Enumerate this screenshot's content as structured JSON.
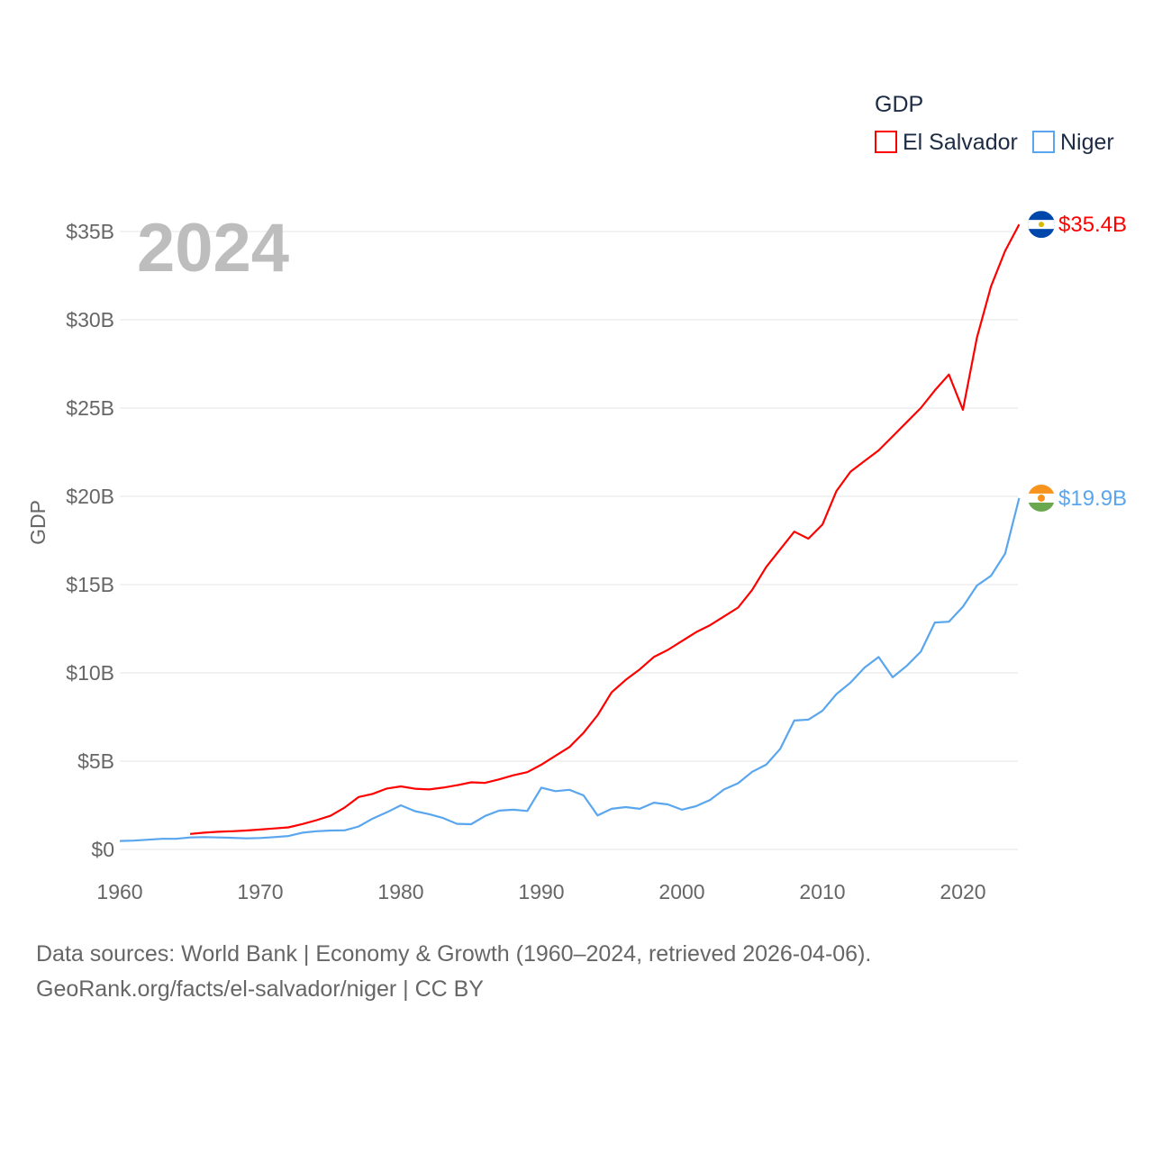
{
  "chart_data": {
    "type": "line",
    "title": "GDP",
    "year_label": "2024",
    "ylabel": "GDP",
    "xlabel": "",
    "xlim": [
      1960,
      2024
    ],
    "ylim": [
      0,
      35
    ],
    "x_ticks": [
      "1960",
      "1970",
      "1980",
      "1990",
      "2000",
      "2010",
      "2020"
    ],
    "y_ticks": [
      {
        "value": 0,
        "label": "$0"
      },
      {
        "value": 5,
        "label": "$5B"
      },
      {
        "value": 10,
        "label": "$10B"
      },
      {
        "value": 15,
        "label": "$15B"
      },
      {
        "value": 20,
        "label": "$20B"
      },
      {
        "value": 25,
        "label": "$25B"
      },
      {
        "value": 30,
        "label": "$30B"
      },
      {
        "value": 35,
        "label": "$35B"
      }
    ],
    "grid": true,
    "legend_position": "top-right",
    "units": "billion USD",
    "series": [
      {
        "name": "El Salvador",
        "color": "#ff0000",
        "end_label": "$35.4B",
        "flag": "el-salvador",
        "start_year": 1965,
        "values": [
          0.88,
          0.95,
          1.0,
          1.03,
          1.07,
          1.13,
          1.19,
          1.25,
          1.44,
          1.66,
          1.91,
          2.37,
          2.97,
          3.15,
          3.45,
          3.57,
          3.44,
          3.4,
          3.5,
          3.64,
          3.8,
          3.77,
          3.97,
          4.2,
          4.38,
          4.8,
          5.3,
          5.8,
          6.6,
          7.6,
          8.9,
          9.6,
          10.2,
          10.9,
          11.3,
          11.8,
          12.3,
          12.7,
          13.2,
          13.7,
          14.7,
          16.0,
          17.0,
          18.0,
          17.6,
          18.4,
          20.3,
          21.4,
          22.0,
          22.6,
          23.4,
          24.2,
          25.0,
          26.0,
          26.9,
          24.9,
          29.0,
          31.9,
          33.9,
          35.4
        ]
      },
      {
        "name": "Niger",
        "color": "#5aa6ee",
        "end_label": "$19.9B",
        "flag": "niger",
        "start_year": 1960,
        "values": [
          0.48,
          0.5,
          0.55,
          0.6,
          0.6,
          0.68,
          0.7,
          0.68,
          0.66,
          0.63,
          0.65,
          0.7,
          0.76,
          0.95,
          1.03,
          1.07,
          1.08,
          1.3,
          1.75,
          2.1,
          2.5,
          2.17,
          2.0,
          1.78,
          1.45,
          1.43,
          1.9,
          2.2,
          2.25,
          2.18,
          3.5,
          3.3,
          3.38,
          3.06,
          1.93,
          2.3,
          2.4,
          2.3,
          2.65,
          2.55,
          2.25,
          2.45,
          2.8,
          3.4,
          3.75,
          4.4,
          4.8,
          5.7,
          7.3,
          7.35,
          7.85,
          8.8,
          9.45,
          10.3,
          10.9,
          9.75,
          10.4,
          11.2,
          12.85,
          12.9,
          13.75,
          14.95,
          15.5,
          16.75,
          19.9
        ]
      }
    ]
  },
  "footer": {
    "line1": "Data sources: World Bank | Economy & Growth (1960–2024, retrieved 2026-04-06).",
    "line2": "GeoRank.org/facts/el-salvador/niger | CC BY"
  }
}
